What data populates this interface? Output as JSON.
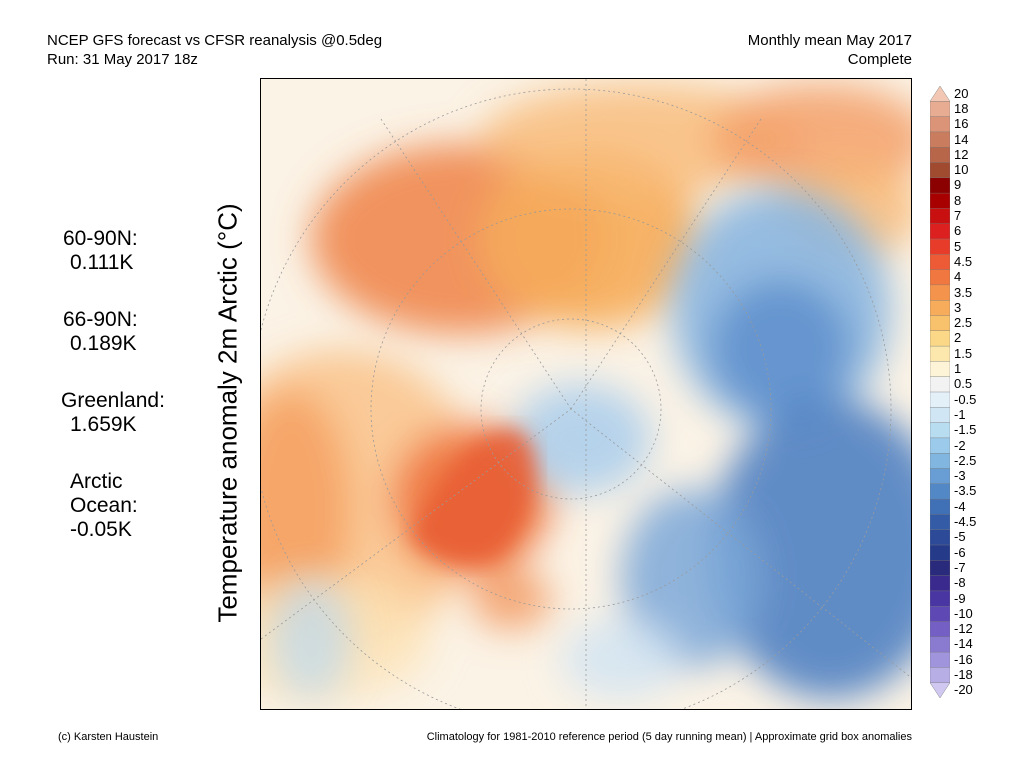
{
  "header": {
    "left_line1": "NCEP GFS forecast vs CFSR reanalysis @0.5deg",
    "left_line2": "Run: 31 May 2017 18z",
    "right_line1": "Monthly mean May 2017",
    "right_line2": "Complete"
  },
  "ylabel": "Temperature anomaly 2m Arctic (°C)",
  "stats": [
    {
      "line1": "60-90N:",
      "line2": "0.111K"
    },
    {
      "line1": "66-90N:",
      "line2": "0.189K"
    },
    {
      "line1": "Greenland:",
      "line2": "1.659K"
    },
    {
      "line1": "Arctic",
      "line2": "Ocean:",
      "line3": "-0.05K"
    }
  ],
  "colorbar": {
    "labels": [
      "20",
      "18",
      "16",
      "14",
      "12",
      "10",
      "9",
      "8",
      "7",
      "6",
      "5",
      "4.5",
      "4",
      "3.5",
      "3",
      "2.5",
      "2",
      "1.5",
      "1",
      "0.5",
      "-0.5",
      "-1",
      "-1.5",
      "-2",
      "-2.5",
      "-3",
      "-3.5",
      "-4",
      "-4.5",
      "-5",
      "-6",
      "-7",
      "-8",
      "-9",
      "-10",
      "-12",
      "-14",
      "-16",
      "-18",
      "-20"
    ],
    "colors": [
      "#f2c8b4",
      "#e8ac92",
      "#dc9478",
      "#c97c5e",
      "#b8664a",
      "#a04a30",
      "#8b0000",
      "#a80000",
      "#c81010",
      "#dc2020",
      "#e83c2a",
      "#ec5a36",
      "#f07840",
      "#f4944c",
      "#f6ac5a",
      "#f8c26c",
      "#fad888",
      "#fce8ac",
      "#fdf4d8",
      "#f2f2f2",
      "#e4f0f8",
      "#d0e6f4",
      "#b8dcf0",
      "#9ccaea",
      "#80b6e0",
      "#689ed4",
      "#5288c6",
      "#4070b6",
      "#345ca6",
      "#2c4a98",
      "#263a8a",
      "#2a2a7c",
      "#3a2a8e",
      "#4a36a2",
      "#5e48b4",
      "#7460c4",
      "#8a7ad0",
      "#a094dc",
      "#b8aee6",
      "#d0c8f0"
    ]
  },
  "footer": {
    "left": "(c) Karsten Haustein",
    "right": "Climatology for 1981-2010 reference period (5 day running mean) | Approximate grid box anomalies"
  }
}
